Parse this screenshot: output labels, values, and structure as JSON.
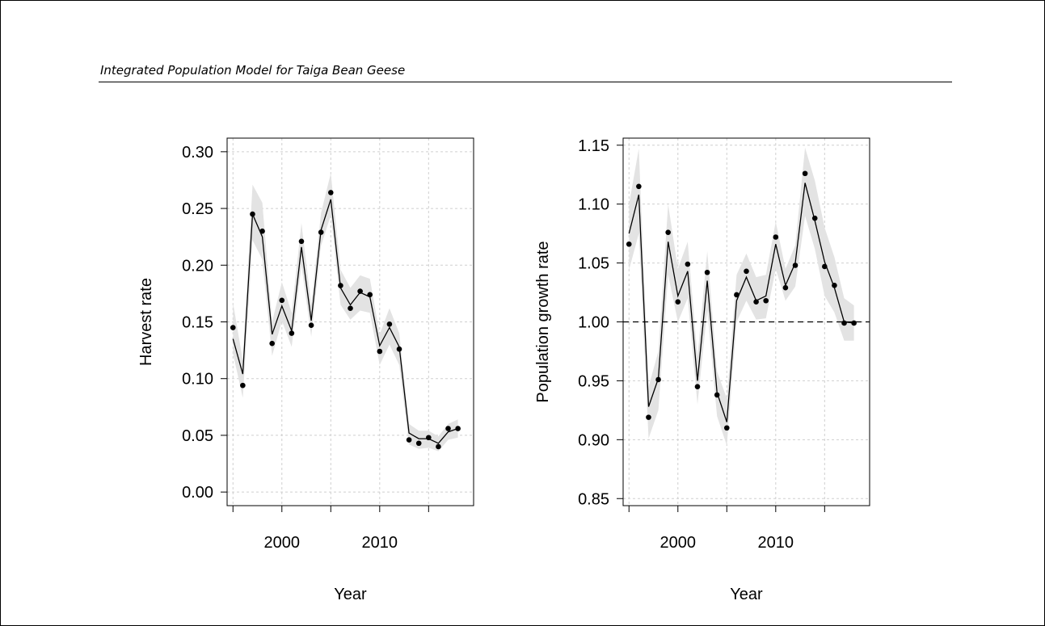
{
  "page": {
    "header": "Integrated Population Model for Taiga Bean Geese"
  },
  "chart_data": [
    {
      "type": "line",
      "xlabel": "Year",
      "ylabel": "Harvest rate",
      "xlim": [
        1994.4,
        2019.6
      ],
      "ylim": [
        -0.012,
        0.312
      ],
      "xticks": [
        1995,
        2000,
        2005,
        2010,
        2015
      ],
      "xtick_labels": [
        "",
        "2000",
        "",
        "2010",
        ""
      ],
      "yticks": [
        0.0,
        0.05,
        0.1,
        0.15,
        0.2,
        0.25,
        0.3
      ],
      "ytick_labels": [
        "0.00",
        "0.05",
        "0.10",
        "0.15",
        "0.20",
        "0.25",
        "0.30"
      ],
      "grid": true,
      "band_color": "#e3e3e3",
      "x": [
        1995,
        1996,
        1997,
        1998,
        1999,
        2000,
        2001,
        2002,
        2003,
        2004,
        2005,
        2006,
        2007,
        2008,
        2009,
        2010,
        2011,
        2012,
        2013,
        2014,
        2015,
        2016,
        2017,
        2018
      ],
      "points": [
        0.145,
        0.094,
        0.245,
        0.23,
        0.131,
        0.169,
        0.14,
        0.221,
        0.147,
        0.229,
        0.264,
        0.182,
        0.162,
        0.177,
        0.174,
        0.124,
        0.148,
        0.126,
        0.046,
        0.043,
        0.048,
        0.04,
        0.056,
        0.056
      ],
      "estimate": [
        0.135,
        0.104,
        0.245,
        0.225,
        0.139,
        0.164,
        0.142,
        0.216,
        0.151,
        0.231,
        0.258,
        0.18,
        0.165,
        0.176,
        0.172,
        0.129,
        0.145,
        0.128,
        0.052,
        0.047,
        0.047,
        0.043,
        0.053,
        0.056
      ],
      "lower": [
        0.122,
        0.083,
        0.222,
        0.205,
        0.12,
        0.151,
        0.128,
        0.2,
        0.137,
        0.217,
        0.244,
        0.165,
        0.152,
        0.16,
        0.158,
        0.112,
        0.13,
        0.112,
        0.042,
        0.038,
        0.039,
        0.036,
        0.046,
        0.048
      ],
      "upper": [
        0.167,
        0.116,
        0.271,
        0.255,
        0.15,
        0.185,
        0.158,
        0.237,
        0.165,
        0.246,
        0.281,
        0.196,
        0.18,
        0.191,
        0.188,
        0.139,
        0.162,
        0.14,
        0.06,
        0.054,
        0.054,
        0.049,
        0.06,
        0.064
      ]
    },
    {
      "type": "line",
      "xlabel": "Year",
      "ylabel": "Population growth rate",
      "xlim": [
        1994.4,
        2019.6
      ],
      "ylim": [
        0.844,
        1.156
      ],
      "xticks": [
        1995,
        2000,
        2005,
        2010,
        2015
      ],
      "xtick_labels": [
        "",
        "2000",
        "",
        "2010",
        ""
      ],
      "yticks": [
        0.85,
        0.9,
        0.95,
        1.0,
        1.05,
        1.1,
        1.15
      ],
      "ytick_labels": [
        "0.85",
        "0.90",
        "0.95",
        "1.00",
        "1.05",
        "1.10",
        "1.15"
      ],
      "grid": true,
      "reference_line": 1.0,
      "band_color": "#e3e3e3",
      "x": [
        1995,
        1996,
        1997,
        1998,
        1999,
        2000,
        2001,
        2002,
        2003,
        2004,
        2005,
        2006,
        2007,
        2008,
        2009,
        2010,
        2011,
        2012,
        2013,
        2014,
        2015,
        2016,
        2017,
        2018
      ],
      "points": [
        1.066,
        1.115,
        0.919,
        0.951,
        1.076,
        1.017,
        1.049,
        0.945,
        1.042,
        0.938,
        0.91,
        1.023,
        1.043,
        1.017,
        1.018,
        1.072,
        1.029,
        1.048,
        1.126,
        1.088,
        1.047,
        1.031,
        0.999,
        0.999
      ],
      "estimate": [
        1.075,
        1.108,
        0.928,
        0.952,
        1.068,
        1.022,
        1.043,
        0.95,
        1.035,
        0.94,
        0.915,
        1.018,
        1.038,
        1.018,
        1.022,
        1.066,
        1.031,
        1.05,
        1.118,
        1.086,
        1.051,
        1.029,
        1.0,
        0.999
      ],
      "lower": [
        1.044,
        1.075,
        0.901,
        0.925,
        1.04,
        1.0,
        1.02,
        0.93,
        1.01,
        0.92,
        0.895,
        1.0,
        1.018,
        1.002,
        1.003,
        1.045,
        1.018,
        1.03,
        1.09,
        1.062,
        1.022,
        1.008,
        0.984,
        0.984
      ],
      "upper": [
        1.1,
        1.147,
        0.945,
        0.975,
        1.1,
        1.045,
        1.068,
        0.97,
        1.06,
        0.958,
        0.935,
        1.04,
        1.058,
        1.038,
        1.04,
        1.085,
        1.045,
        1.065,
        1.148,
        1.12,
        1.08,
        1.055,
        1.02,
        1.014
      ]
    }
  ]
}
